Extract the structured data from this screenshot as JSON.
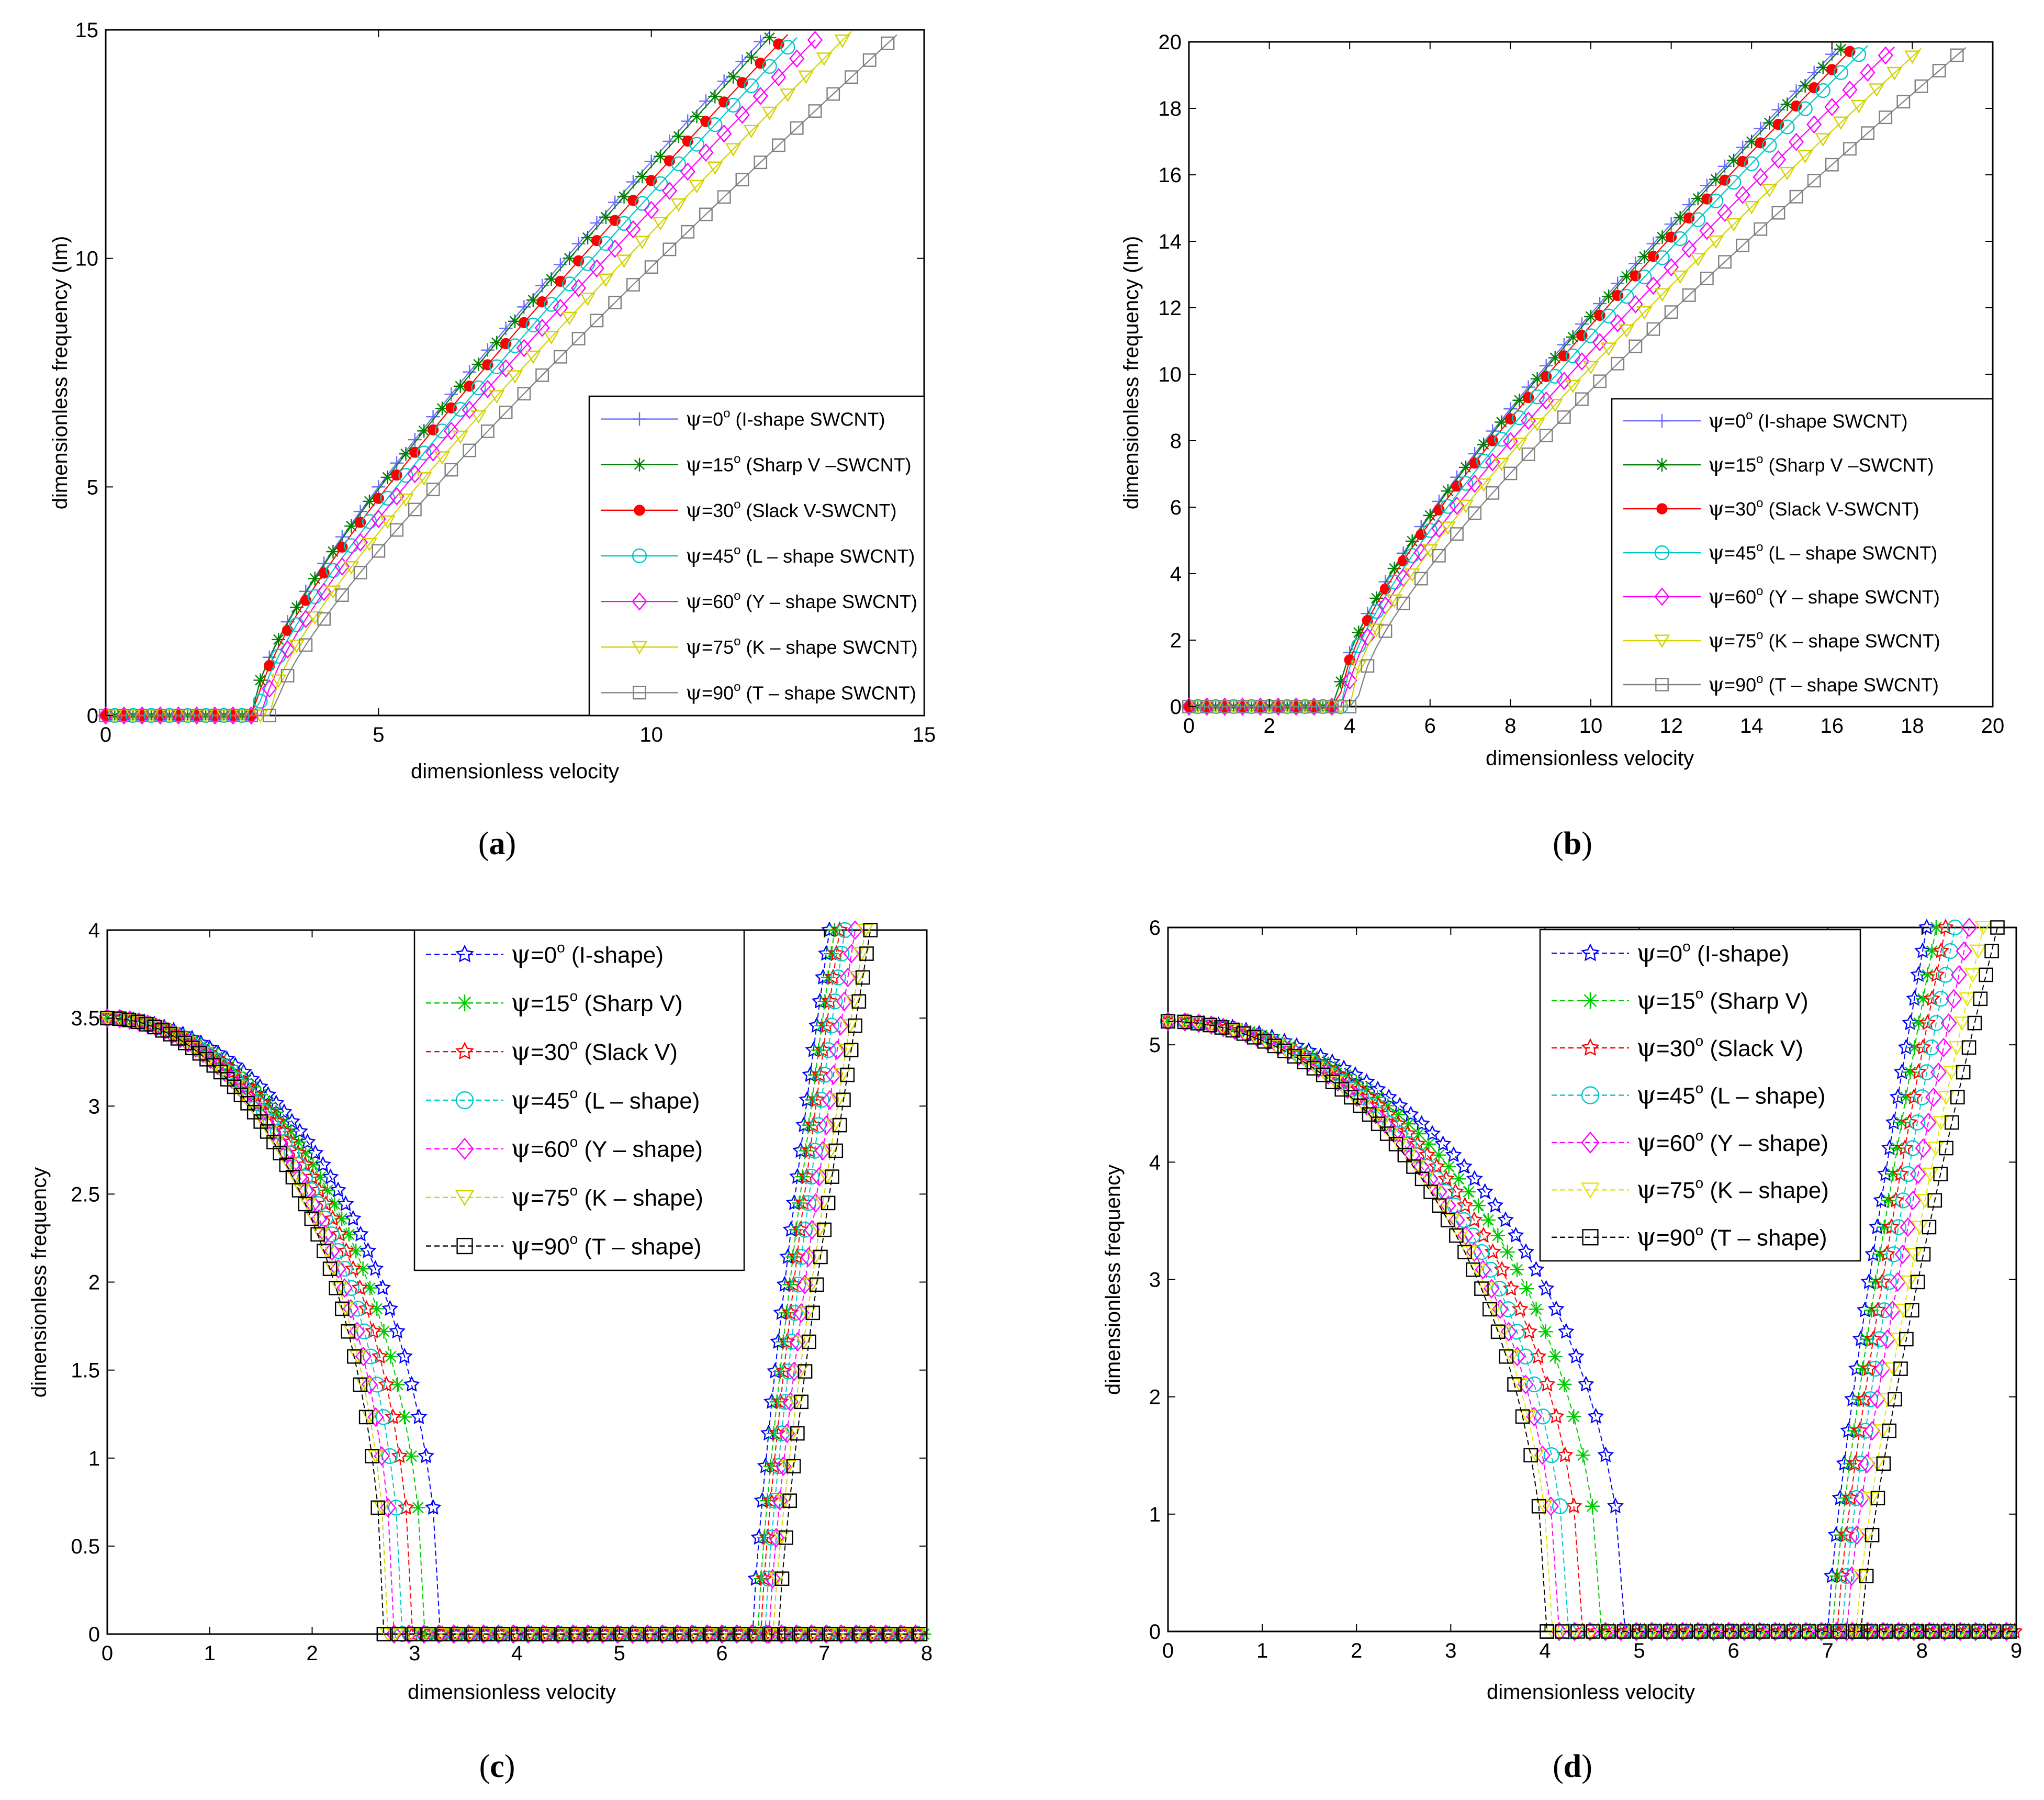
{
  "chart_data": [
    {
      "id": "a",
      "type": "line",
      "caption": "a",
      "xlabel": "dimensionless velocity",
      "ylabel": "dimensionless frequency (Im)",
      "xlim": [
        0,
        15
      ],
      "ylim": [
        0,
        15
      ],
      "xticks": [
        0,
        5,
        10,
        15
      ],
      "yticks": [
        0,
        5,
        10,
        15
      ],
      "legend_position": "bottom-right",
      "series": [
        {
          "name": "ψ=0° (I-shape SWCNT)",
          "angle": "0",
          "desc": "(I-shape SWCNT)",
          "color": "#6b6bff",
          "marker": "plus",
          "critical_velocity": 2.7,
          "x_end": 12.2,
          "y_end": 15.0,
          "y_at_5": 5.0,
          "x_at_y10": 8.9
        },
        {
          "name": "ψ=15° (Sharp V –SWCNT)",
          "angle": "15",
          "desc": "(Sharp V –SWCNT)",
          "color": "#008000",
          "marker": "star",
          "critical_velocity": 2.7,
          "x_end": 12.3,
          "y_end": 15.0,
          "y_at_5": 4.95,
          "x_at_y10": 8.95
        },
        {
          "name": "ψ=30° (Slack V-SWCNT)",
          "angle": "30",
          "desc": "(Slack V-SWCNT)",
          "color": "#ff0000",
          "marker": "dot",
          "critical_velocity": 2.75,
          "x_end": 12.5,
          "y_end": 14.9,
          "y_at_5": 4.75,
          "x_at_y10": 9.1
        },
        {
          "name": "ψ=45° (L – shape SWCNT)",
          "angle": "45",
          "desc": "(L – shape SWCNT)",
          "color": "#00c8c8",
          "marker": "circle",
          "critical_velocity": 2.8,
          "x_end": 12.8,
          "y_end": 15.0,
          "y_at_5": 4.5,
          "x_at_y10": 9.3
        },
        {
          "name": "ψ=60° (Y – shape SWCNT)",
          "angle": "60",
          "desc": "(Y – shape SWCNT)",
          "color": "#ff00ff",
          "marker": "diamond",
          "critical_velocity": 2.9,
          "x_end": 13.1,
          "y_end": 14.9,
          "y_at_5": 4.3,
          "x_at_y10": 9.6
        },
        {
          "name": "ψ=75° (K – shape SWCNT)",
          "angle": "75",
          "desc": "(K – shape SWCNT)",
          "color": "#d2d200",
          "marker": "triangle-down",
          "critical_velocity": 3.0,
          "x_end": 13.7,
          "y_end": 15.0,
          "y_at_5": 4.0,
          "x_at_y10": 9.9
        },
        {
          "name": "ψ=90° (T – shape SWCNT)",
          "angle": "90",
          "desc": "(T – shape SWCNT)",
          "color": "#808080",
          "marker": "square",
          "critical_velocity": 3.1,
          "x_end": 14.6,
          "y_end": 15.0,
          "y_at_5": 3.6,
          "x_at_y10": 10.4
        }
      ]
    },
    {
      "id": "b",
      "type": "line",
      "caption": "b",
      "xlabel": "dimensionless velocity",
      "ylabel": "dimensionless frequency (Im)",
      "xlim": [
        0,
        20
      ],
      "ylim": [
        0,
        20
      ],
      "xticks": [
        0,
        2,
        4,
        6,
        8,
        10,
        12,
        14,
        16,
        18,
        20
      ],
      "yticks": [
        0,
        2,
        4,
        6,
        8,
        10,
        12,
        14,
        16,
        18,
        20
      ],
      "legend_position": "bottom-right",
      "series": [
        {
          "name": "ψ=0° (I-shape SWCNT)",
          "angle": "0",
          "desc": "(I-shape SWCNT)",
          "color": "#6b6bff",
          "marker": "plus",
          "critical_velocity": 3.7,
          "x_end": 16.3,
          "y_end": 20.0,
          "y_at_6": 5.8,
          "x_at_y12": 11.3
        },
        {
          "name": "ψ=15° (Sharp V –SWCNT)",
          "angle": "15",
          "desc": "(Sharp V –SWCNT)",
          "color": "#008000",
          "marker": "star",
          "critical_velocity": 3.7,
          "x_end": 16.4,
          "y_end": 20.0,
          "y_at_6": 5.75,
          "x_at_y12": 11.35
        },
        {
          "name": "ψ=30° (Slack V-SWCNT)",
          "angle": "30",
          "desc": "(Slack V-SWCNT)",
          "color": "#ff0000",
          "marker": "dot",
          "critical_velocity": 3.75,
          "x_end": 16.6,
          "y_end": 19.9,
          "y_at_6": 5.55,
          "x_at_y12": 11.5
        },
        {
          "name": "ψ=45° (L – shape SWCNT)",
          "angle": "45",
          "desc": "(L – shape SWCNT)",
          "color": "#00c8c8",
          "marker": "circle",
          "critical_velocity": 3.8,
          "x_end": 16.9,
          "y_end": 19.9,
          "y_at_6": 5.3,
          "x_at_y12": 11.8
        },
        {
          "name": "ψ=60° (Y – shape SWCNT)",
          "angle": "60",
          "desc": "(Y – shape SWCNT)",
          "color": "#ff00ff",
          "marker": "diamond",
          "critical_velocity": 3.9,
          "x_end": 17.6,
          "y_end": 19.9,
          "y_at_6": 5.0,
          "x_at_y12": 12.2
        },
        {
          "name": "ψ=75° (K – shape SWCNT)",
          "angle": "75",
          "desc": "(K – shape SWCNT)",
          "color": "#d2d200",
          "marker": "triangle-down",
          "critical_velocity": 4.0,
          "x_end": 18.4,
          "y_end": 20.0,
          "y_at_6": 4.7,
          "x_at_y12": 12.7
        },
        {
          "name": "ψ=90° (T – shape SWCNT)",
          "angle": "90",
          "desc": "(T – shape SWCNT)",
          "color": "#808080",
          "marker": "square",
          "critical_velocity": 4.2,
          "x_end": 19.4,
          "y_end": 19.9,
          "y_at_6": 4.2,
          "x_at_y12": 13.4
        }
      ]
    },
    {
      "id": "c",
      "type": "line",
      "caption": "c",
      "xlabel": "dimensionless velocity",
      "ylabel": "dimensionless frequency",
      "xlim": [
        0,
        8
      ],
      "ylim": [
        0,
        4
      ],
      "xticks": [
        0,
        1,
        2,
        3,
        4,
        5,
        6,
        7,
        8
      ],
      "yticks": [
        0,
        0.5,
        1,
        1.5,
        2,
        2.5,
        3,
        3.5,
        4
      ],
      "legend_position": "top-center",
      "series": [
        {
          "name": "ψ=0° (I-shape)",
          "angle": "0",
          "desc": "(I-shape)",
          "color": "#0000ff",
          "marker": "hexagram",
          "f0": 3.5,
          "divergence_velocity": 3.25,
          "restab_velocity": 6.3,
          "v_top": 7.05
        },
        {
          "name": "ψ=15° (Sharp V)",
          "angle": "15",
          "desc": "(Sharp V)",
          "color": "#00c800",
          "marker": "star",
          "f0": 3.5,
          "divergence_velocity": 3.1,
          "restab_velocity": 6.35,
          "v_top": 7.1
        },
        {
          "name": "ψ=30° (Slack V)",
          "angle": "30",
          "desc": "(Slack V)",
          "color": "#ff0000",
          "marker": "hexagram",
          "f0": 3.5,
          "divergence_velocity": 2.98,
          "restab_velocity": 6.38,
          "v_top": 7.15
        },
        {
          "name": "ψ=45° (L – shape)",
          "angle": "45",
          "desc": "(L – shape)",
          "color": "#00c8c8",
          "marker": "circle",
          "f0": 3.5,
          "divergence_velocity": 2.88,
          "restab_velocity": 6.42,
          "v_top": 7.2
        },
        {
          "name": "ψ=60° (Y – shape)",
          "angle": "60",
          "desc": "(Y – shape)",
          "color": "#ff00ff",
          "marker": "diamond",
          "f0": 3.5,
          "divergence_velocity": 2.8,
          "restab_velocity": 6.46,
          "v_top": 7.3
        },
        {
          "name": "ψ=75° (K – shape)",
          "angle": "75",
          "desc": "(K – shape)",
          "color": "#d2d200",
          "marker": "triangle-down",
          "f0": 3.5,
          "divergence_velocity": 2.74,
          "restab_velocity": 6.5,
          "v_top": 7.4
        },
        {
          "name": "ψ=90° (T – shape)",
          "angle": "90",
          "desc": "(T – shape)",
          "color": "#000000",
          "marker": "square",
          "f0": 3.5,
          "divergence_velocity": 2.7,
          "restab_velocity": 6.55,
          "v_top": 7.45
        }
      ]
    },
    {
      "id": "d",
      "type": "line",
      "caption": "d",
      "xlabel": "dimensionless velocity",
      "ylabel": "dimensionless frequency",
      "xlim": [
        0,
        9
      ],
      "ylim": [
        0,
        6
      ],
      "xticks": [
        0,
        1,
        2,
        3,
        4,
        5,
        6,
        7,
        8,
        9
      ],
      "yticks": [
        0,
        1,
        2,
        3,
        4,
        5,
        6
      ],
      "legend_position": "top-center",
      "series": [
        {
          "name": "ψ=0° (I-shape)",
          "angle": "0",
          "desc": "(I-shape)",
          "color": "#0000ff",
          "marker": "hexagram",
          "f0": 5.2,
          "divergence_velocity": 4.85,
          "restab_velocity": 7.0,
          "v_top": 8.05
        },
        {
          "name": "ψ=15° (Sharp V)",
          "angle": "15",
          "desc": "(Sharp V)",
          "color": "#00c800",
          "marker": "star",
          "f0": 5.2,
          "divergence_velocity": 4.6,
          "restab_velocity": 7.05,
          "v_top": 8.15
        },
        {
          "name": "ψ=30° (Slack V)",
          "angle": "30",
          "desc": "(Slack V)",
          "color": "#ff0000",
          "marker": "hexagram",
          "f0": 5.2,
          "divergence_velocity": 4.4,
          "restab_velocity": 7.1,
          "v_top": 8.25
        },
        {
          "name": "ψ=45° (L – shape)",
          "angle": "45",
          "desc": "(L – shape)",
          "color": "#00c8c8",
          "marker": "circle",
          "f0": 5.2,
          "divergence_velocity": 4.25,
          "restab_velocity": 7.15,
          "v_top": 8.35
        },
        {
          "name": "ψ=60° (Y – shape)",
          "angle": "60",
          "desc": "(Y – shape)",
          "color": "#ff00ff",
          "marker": "diamond",
          "f0": 5.2,
          "divergence_velocity": 4.15,
          "restab_velocity": 7.2,
          "v_top": 8.5
        },
        {
          "name": "ψ=75° (K – shape)",
          "angle": "75",
          "desc": "(K – shape)",
          "color": "#e6e600",
          "marker": "triangle-down",
          "f0": 5.2,
          "divergence_velocity": 4.08,
          "restab_velocity": 7.3,
          "v_top": 8.65
        },
        {
          "name": "ψ=90° (T – shape)",
          "angle": "90",
          "desc": "(T – shape)",
          "color": "#000000",
          "marker": "square",
          "f0": 5.2,
          "divergence_velocity": 4.02,
          "restab_velocity": 7.35,
          "v_top": 8.8
        }
      ]
    }
  ]
}
